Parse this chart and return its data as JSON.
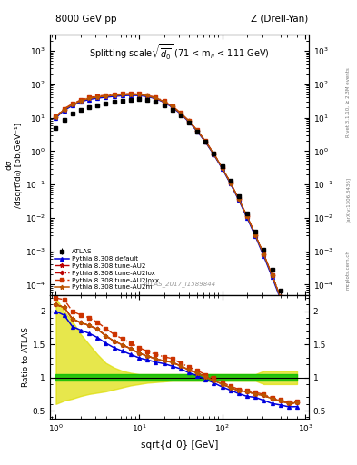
{
  "title_left": "8000 GeV pp",
  "title_right": "Z (Drell-Yan)",
  "plot_title": "Splitting scale $\\sqrt{\\overline{d_0}}$ (71 < m$_{ll}$ < 111 GeV)",
  "ylabel_main": "d$\\sigma$\n/dsqrt($\\overline{d_0}$) [pb,GeV$^{-1}$]",
  "ylabel_ratio": "Ratio to ATLAS",
  "xlabel": "sqrt{d_0} [GeV]",
  "watermark": "ATLAS_2017_I1589844",
  "x": [
    1.0,
    1.26,
    1.58,
    2.0,
    2.51,
    3.16,
    3.98,
    5.01,
    6.31,
    7.94,
    10.0,
    12.6,
    15.8,
    20.0,
    25.1,
    31.6,
    39.8,
    50.1,
    63.1,
    79.4,
    100.0,
    125.9,
    158.5,
    199.5,
    251.2,
    316.2,
    398.1,
    501.2,
    630.9,
    794.3
  ],
  "data_y": [
    5.0,
    8.5,
    13.0,
    17.5,
    21.0,
    24.0,
    27.0,
    30.0,
    32.5,
    34.5,
    35.5,
    34.0,
    30.0,
    24.0,
    17.5,
    11.5,
    7.0,
    3.8,
    1.9,
    0.85,
    0.35,
    0.13,
    0.045,
    0.014,
    0.004,
    0.0011,
    0.00028,
    6.5e-05,
    1.4e-05,
    2.5e-06
  ],
  "data_err_lo": [
    0.6,
    0.9,
    1.2,
    1.5,
    1.7,
    1.8,
    1.9,
    2.0,
    2.1,
    2.2,
    2.2,
    2.1,
    1.9,
    1.6,
    1.2,
    0.85,
    0.55,
    0.32,
    0.17,
    0.08,
    0.036,
    0.014,
    0.005,
    0.0016,
    0.0005,
    0.00014,
    3.8e-05,
    9e-06,
    2e-06,
    4e-07
  ],
  "data_err_hi": [
    0.6,
    0.9,
    1.2,
    1.5,
    1.7,
    1.8,
    1.9,
    2.0,
    2.1,
    2.2,
    2.2,
    2.1,
    1.9,
    1.6,
    1.2,
    0.85,
    0.55,
    0.32,
    0.17,
    0.08,
    0.036,
    0.014,
    0.005,
    0.0016,
    0.0005,
    0.00014,
    3.8e-05,
    9e-06,
    2e-06,
    4e-07
  ],
  "py_default_y": [
    10.0,
    16.5,
    23.0,
    30.0,
    35.0,
    38.5,
    41.0,
    43.5,
    45.5,
    46.5,
    46.0,
    43.0,
    37.0,
    29.0,
    20.5,
    13.0,
    7.5,
    3.9,
    1.85,
    0.78,
    0.3,
    0.105,
    0.034,
    0.01,
    0.0028,
    0.00072,
    0.00017,
    3.8e-05,
    7.8e-06,
    1.4e-06
  ],
  "py_au2_y": [
    10.5,
    17.5,
    24.5,
    32.0,
    37.5,
    41.5,
    44.0,
    46.5,
    48.5,
    49.5,
    48.5,
    45.0,
    38.5,
    30.0,
    21.5,
    13.5,
    7.8,
    4.05,
    1.92,
    0.81,
    0.315,
    0.11,
    0.036,
    0.011,
    0.003,
    0.0008,
    0.00019,
    4.2e-05,
    8.5e-06,
    1.55e-06
  ],
  "py_au2lox_y": [
    10.5,
    17.5,
    24.5,
    32.0,
    37.5,
    41.5,
    44.0,
    46.5,
    48.5,
    49.5,
    48.5,
    45.0,
    38.5,
    30.0,
    21.5,
    13.5,
    7.8,
    4.05,
    1.92,
    0.81,
    0.315,
    0.11,
    0.036,
    0.011,
    0.003,
    0.0008,
    0.00019,
    4.2e-05,
    8.5e-06,
    1.55e-06
  ],
  "py_au2loxx_y": [
    11.0,
    18.5,
    26.0,
    34.0,
    40.0,
    44.0,
    47.0,
    49.5,
    51.5,
    52.5,
    51.5,
    47.5,
    40.5,
    31.5,
    22.5,
    14.0,
    8.1,
    4.2,
    1.98,
    0.84,
    0.325,
    0.113,
    0.037,
    0.0113,
    0.0031,
    0.00082,
    0.000195,
    4.3e-05,
    8.7e-06,
    1.6e-06
  ],
  "py_au2m_y": [
    10.5,
    17.5,
    24.5,
    32.0,
    37.5,
    41.5,
    44.0,
    46.5,
    48.5,
    49.5,
    48.5,
    45.0,
    38.5,
    30.0,
    21.5,
    13.5,
    7.8,
    4.05,
    1.92,
    0.81,
    0.315,
    0.11,
    0.036,
    0.011,
    0.003,
    0.0008,
    0.00019,
    4.2e-05,
    8.5e-06,
    1.55e-06
  ],
  "band_x": [
    1.0,
    1.26,
    1.58,
    2.0,
    2.51,
    3.16,
    3.98,
    5.01,
    6.31,
    7.94,
    10.0,
    12.6,
    15.8,
    20.0,
    25.1,
    31.6,
    39.8,
    50.1,
    63.1,
    79.4,
    100.0,
    125.9,
    158.5,
    199.5,
    251.2,
    316.2,
    398.1,
    501.2,
    630.9,
    794.3
  ],
  "band_green_lo": [
    0.95,
    0.95,
    0.95,
    0.95,
    0.95,
    0.95,
    0.95,
    0.95,
    0.95,
    0.95,
    0.95,
    0.95,
    0.95,
    0.95,
    0.95,
    0.95,
    0.95,
    0.95,
    0.95,
    0.95,
    0.95,
    0.95,
    0.95,
    0.95,
    0.95,
    0.95,
    0.95,
    0.95,
    0.95,
    0.95
  ],
  "band_green_hi": [
    1.05,
    1.05,
    1.05,
    1.05,
    1.05,
    1.05,
    1.05,
    1.05,
    1.05,
    1.05,
    1.05,
    1.05,
    1.05,
    1.05,
    1.05,
    1.05,
    1.05,
    1.05,
    1.05,
    1.05,
    1.05,
    1.05,
    1.05,
    1.05,
    1.05,
    1.05,
    1.05,
    1.05,
    1.05,
    1.05
  ],
  "band_yellow_lo": [
    0.6,
    0.65,
    0.68,
    0.72,
    0.75,
    0.77,
    0.79,
    0.82,
    0.85,
    0.88,
    0.9,
    0.92,
    0.93,
    0.94,
    0.95,
    0.95,
    0.95,
    0.95,
    0.95,
    0.95,
    0.95,
    0.95,
    0.95,
    0.95,
    0.95,
    0.9,
    0.9,
    0.9,
    0.9,
    0.9
  ],
  "band_yellow_hi": [
    2.2,
    2.0,
    1.85,
    1.65,
    1.5,
    1.35,
    1.22,
    1.15,
    1.1,
    1.07,
    1.05,
    1.05,
    1.05,
    1.05,
    1.05,
    1.05,
    1.05,
    1.05,
    1.05,
    1.05,
    1.05,
    1.05,
    1.05,
    1.05,
    1.05,
    1.1,
    1.1,
    1.1,
    1.1,
    1.1
  ],
  "color_default": "#0000dd",
  "color_au2": "#bb0000",
  "color_au2lox": "#bb0000",
  "color_au2loxx": "#cc3300",
  "color_au2m": "#bb5500",
  "color_green_band": "#00bb00",
  "color_yellow_band": "#dddd00",
  "ylim_main": [
    5e-05,
    3000.0
  ],
  "ylim_ratio": [
    0.38,
    2.25
  ],
  "xlim": [
    0.85,
    1100.0
  ]
}
